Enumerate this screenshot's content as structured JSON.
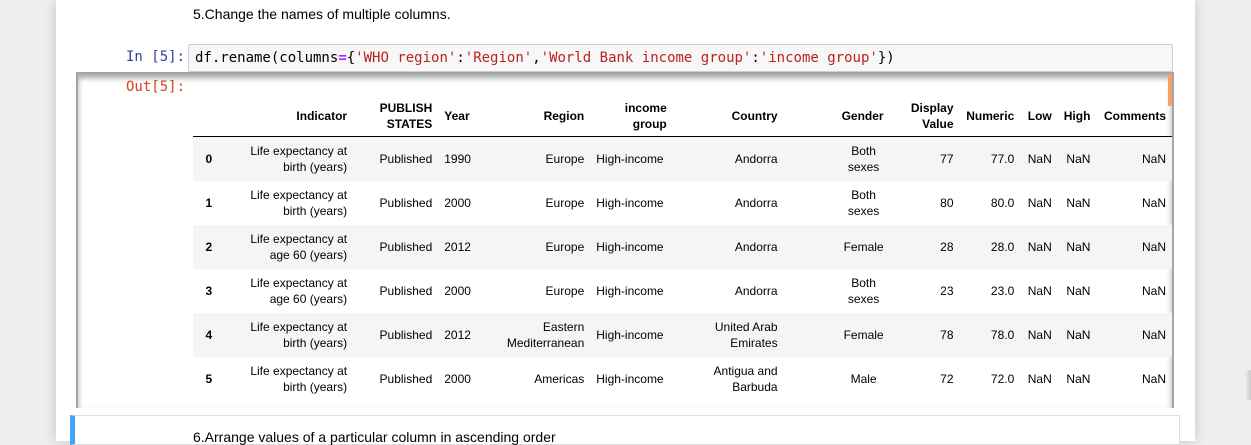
{
  "markdown_heading": "5.Change the names of multiple columns.",
  "input_prompt": "In [5]:",
  "output_prompt": "Out[5]:",
  "code": {
    "prefix": "df.rename(columns",
    "op": "=",
    "open": "{",
    "key1": "'WHO region'",
    "colon1": ":",
    "val1": "'Region'",
    "comma": ",",
    "key2": "'World Bank income group'",
    "colon2": ":",
    "val2": "'income group'",
    "close": "})"
  },
  "table": {
    "index_header": "",
    "columns": [
      "Indicator",
      "PUBLISH STATES",
      "Year",
      "Region",
      "income group",
      "Country",
      "Gender",
      "Display Value",
      "Numeric",
      "Low",
      "High",
      "Comments"
    ],
    "rows": [
      {
        "index": "0",
        "cells": [
          "Life expectancy at birth (years)",
          "Published",
          "1990",
          "Europe",
          "High-income",
          "Andorra",
          "Both sexes",
          "77",
          "77.0",
          "NaN",
          "NaN",
          "NaN"
        ]
      },
      {
        "index": "1",
        "cells": [
          "Life expectancy at birth (years)",
          "Published",
          "2000",
          "Europe",
          "High-income",
          "Andorra",
          "Both sexes",
          "80",
          "80.0",
          "NaN",
          "NaN",
          "NaN"
        ]
      },
      {
        "index": "2",
        "cells": [
          "Life expectancy at age 60 (years)",
          "Published",
          "2012",
          "Europe",
          "High-income",
          "Andorra",
          "Female",
          "28",
          "28.0",
          "NaN",
          "NaN",
          "NaN"
        ]
      },
      {
        "index": "3",
        "cells": [
          "Life expectancy at age 60 (years)",
          "Published",
          "2000",
          "Europe",
          "High-income",
          "Andorra",
          "Both sexes",
          "23",
          "23.0",
          "NaN",
          "NaN",
          "NaN"
        ]
      },
      {
        "index": "4",
        "cells": [
          "Life expectancy at birth (years)",
          "Published",
          "2012",
          "Eastern Mediterranean",
          "High-income",
          "United Arab Emirates",
          "Female",
          "78",
          "78.0",
          "NaN",
          "NaN",
          "NaN"
        ]
      },
      {
        "index": "5",
        "cells": [
          "Life expectancy at birth (years)",
          "Published",
          "2000",
          "Americas",
          "High-income",
          "Antigua and Barbuda",
          "Male",
          "72",
          "72.0",
          "NaN",
          "NaN",
          "NaN"
        ]
      }
    ]
  },
  "next_heading": "6.Arrange values of a particular column in ascending order"
}
